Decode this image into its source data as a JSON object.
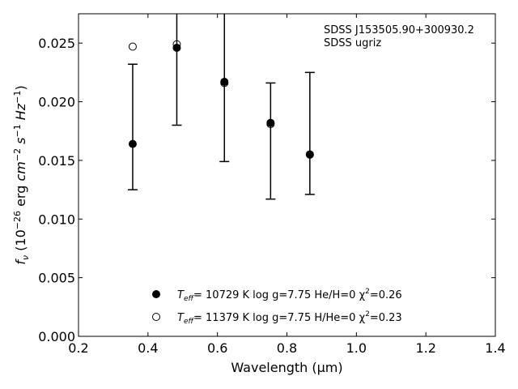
{
  "chart_data": {
    "type": "scatter",
    "xlabel": "Wavelength (μm)",
    "ylabel_parts": {
      "f": "f",
      "nu": "ν",
      "open": " (10",
      "exp1": "−26",
      "erg": " erg ",
      "cm": "cm",
      "exp2": "−2",
      "s": " s",
      "exp3": "−1",
      "hz": " Hz",
      "exp4": "−1",
      "close": ")"
    },
    "xlim": [
      0.2,
      1.4
    ],
    "ylim": [
      0.0,
      0.0275
    ],
    "xticks": [
      {
        "value": 0.2,
        "label": "0.2"
      },
      {
        "value": 0.4,
        "label": "0.4"
      },
      {
        "value": 0.6,
        "label": "0.6"
      },
      {
        "value": 0.8,
        "label": "0.8"
      },
      {
        "value": 1.0,
        "label": "1.0"
      },
      {
        "value": 1.2,
        "label": "1.2"
      },
      {
        "value": 1.4,
        "label": "1.4"
      }
    ],
    "yticks": [
      {
        "value": 0.0,
        "label": "0.000"
      },
      {
        "value": 0.005,
        "label": "0.005"
      },
      {
        "value": 0.01,
        "label": "0.010"
      },
      {
        "value": 0.015,
        "label": "0.015"
      },
      {
        "value": 0.02,
        "label": "0.020"
      },
      {
        "value": 0.025,
        "label": "0.025"
      }
    ],
    "annotation": [
      "SDSS J153505.90+300930.2",
      "SDSS ugriz"
    ],
    "observed": {
      "x": [
        0.356,
        0.483,
        0.62,
        0.753,
        0.866
      ],
      "y": [
        0.0164,
        0.0246,
        0.0217,
        0.0183,
        0.0155
      ],
      "err_low": [
        0.0125,
        0.018,
        0.0149,
        0.0117,
        0.0121
      ],
      "err_high": [
        0.0232,
        0.0284,
        0.0285,
        0.0216,
        0.0225
      ]
    },
    "series": [
      {
        "marker": "filled",
        "x": [
          0.356,
          0.483,
          0.62,
          0.753,
          0.866
        ],
        "y": [
          0.0164,
          0.0246,
          0.0217,
          0.0182,
          0.0155
        ],
        "legend": {
          "t": "T",
          "sub": "eff",
          "rest": "= 10729 K  log g=7.75  He/H=0  χ",
          "sup": "2",
          "end": "=0.26"
        }
      },
      {
        "marker": "open",
        "x": [
          0.356,
          0.483,
          0.62,
          0.753,
          0.866
        ],
        "y": [
          0.0247,
          0.0249,
          0.0216,
          0.0181,
          0.0155
        ],
        "legend": {
          "t": "T",
          "sub": "eff",
          "rest": "= 11379 K  log g=7.75  H/He=0  χ",
          "sup": "2",
          "end": "=0.23"
        }
      }
    ],
    "grid": false
  }
}
